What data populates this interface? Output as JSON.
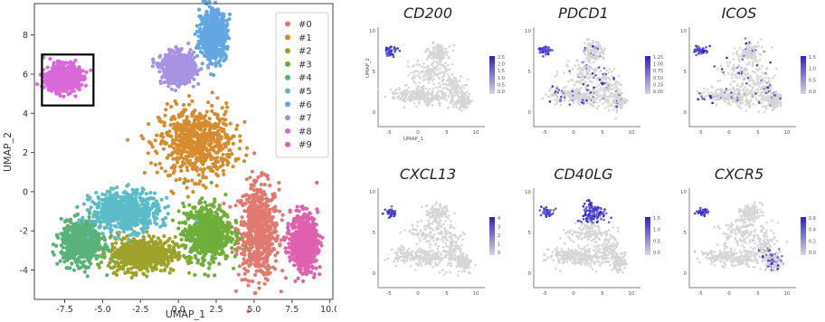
{
  "chart_data": [
    {
      "type": "scatter",
      "title": "",
      "xlabel": "UMAP_1",
      "ylabel": "UMAP_2",
      "xlim": [
        -9.5,
        10.2
      ],
      "ylim": [
        -5.5,
        9.6
      ],
      "xticks": [
        "-7.5",
        "-5.0",
        "-2.5",
        "0.0",
        "2.5",
        "5.0",
        "7.5",
        "10.0"
      ],
      "yticks": [
        "-4",
        "-2",
        "0",
        "2",
        "4",
        "6",
        "8"
      ],
      "grid": false,
      "legend": {
        "position": "top-right",
        "entries": [
          "#0",
          "#1",
          "#2",
          "#3",
          "#4",
          "#5",
          "#6",
          "#7",
          "#8",
          "#9"
        ]
      },
      "colors": [
        "#e07a70",
        "#d68b2e",
        "#9ea22a",
        "#6fae3a",
        "#58b27a",
        "#5bbcc8",
        "#63a6e4",
        "#a793e2",
        "#d968d8",
        "#e060b0"
      ],
      "clusters": [
        {
          "name": "#0",
          "center": [
            5.3,
            -2.0
          ],
          "spread": [
            1.2,
            2.2
          ]
        },
        {
          "name": "#1",
          "center": [
            1.2,
            2.5
          ],
          "spread": [
            2.2,
            1.6
          ]
        },
        {
          "name": "#2",
          "center": [
            -2.4,
            -3.2
          ],
          "spread": [
            2.0,
            0.8
          ]
        },
        {
          "name": "#3",
          "center": [
            1.9,
            -2.1
          ],
          "spread": [
            1.4,
            1.3
          ]
        },
        {
          "name": "#4",
          "center": [
            -6.4,
            -2.6
          ],
          "spread": [
            1.2,
            1.0
          ]
        },
        {
          "name": "#5",
          "center": [
            -3.5,
            -1.0
          ],
          "spread": [
            2.0,
            0.9
          ]
        },
        {
          "name": "#6",
          "center": [
            2.3,
            8.0
          ],
          "spread": [
            0.8,
            1.1
          ]
        },
        {
          "name": "#7",
          "center": [
            0.0,
            6.3
          ],
          "spread": [
            1.0,
            0.7
          ]
        },
        {
          "name": "#8",
          "center": [
            -7.6,
            5.8
          ],
          "spread": [
            1.0,
            0.6
          ]
        },
        {
          "name": "#9",
          "center": [
            8.3,
            -2.6
          ],
          "spread": [
            0.8,
            1.3
          ]
        }
      ],
      "highlight_box": {
        "x": [
          -9.0,
          -5.6
        ],
        "y": [
          4.4,
          7.0
        ]
      }
    },
    {
      "type": "scatter",
      "layout": "feature-plots",
      "panels": [
        {
          "title": "CD200",
          "xlabel": "UMAP_1",
          "ylabel": "UMAP_2",
          "legend_ticks": [
            "2.5",
            "2.0",
            "1.5",
            "1.0",
            "0.5",
            "0.0"
          ],
          "expression": "islet"
        },
        {
          "title": "PDCD1",
          "legend_ticks": [
            "1.25",
            "1.00",
            "0.75",
            "0.50",
            "0.25",
            "0.00"
          ],
          "expression": "islet-diffuse"
        },
        {
          "title": "ICOS",
          "legend_ticks": [
            "1.5",
            "1.0",
            "0.5",
            "0.0"
          ],
          "expression": "islet-diffuse"
        },
        {
          "title": "CXCL13",
          "legend_ticks": [
            "4",
            "3",
            "2",
            "1",
            "0"
          ],
          "expression": "islet"
        },
        {
          "title": "CD40LG",
          "legend_ticks": [
            "1.5",
            "1.0",
            "0.5",
            "0.0"
          ],
          "expression": "islet-top"
        },
        {
          "title": "CXCR5",
          "legend_ticks": [
            "0.6",
            "0.4",
            "0.2",
            "0.0"
          ],
          "expression": "islet-right"
        }
      ],
      "xticks": [
        "-5",
        "0",
        "5",
        "10"
      ],
      "yticks": [
        "10",
        "5",
        "0"
      ],
      "low_color": "#d6d6d6",
      "high_color": "#2b1fd0"
    }
  ]
}
